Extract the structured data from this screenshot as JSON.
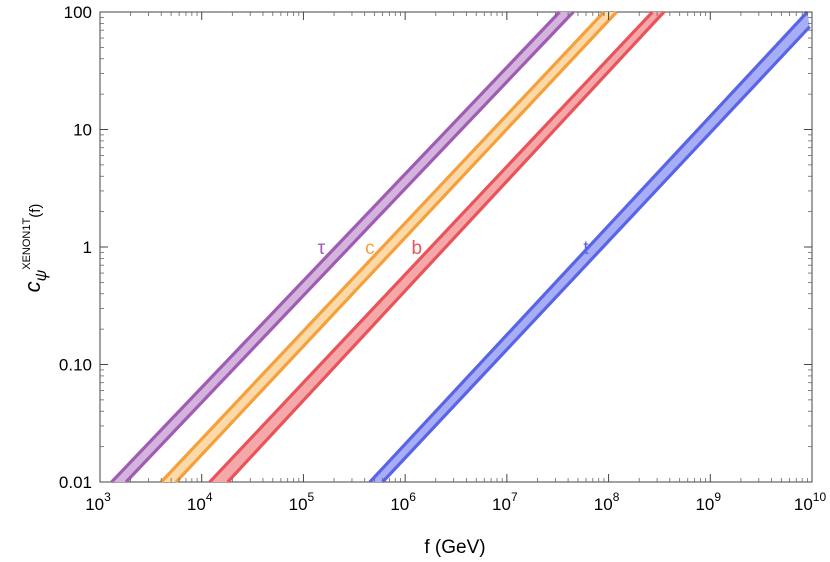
{
  "chart_data": {
    "type": "area",
    "xlabel": "f (GeV)",
    "ylabel": {
      "main": "c",
      "sub": "ψ",
      "sup": "XENON1T",
      "arg": "(f)"
    },
    "xscale": "log",
    "yscale": "log",
    "xlim": [
      1000,
      10000000000
    ],
    "ylim": [
      0.01,
      100
    ],
    "x_ticks": [
      {
        "base": "10",
        "exp": "3"
      },
      {
        "base": "10",
        "exp": "4"
      },
      {
        "base": "10",
        "exp": "5"
      },
      {
        "base": "10",
        "exp": "6"
      },
      {
        "base": "10",
        "exp": "7"
      },
      {
        "base": "10",
        "exp": "8"
      },
      {
        "base": "10",
        "exp": "9"
      },
      {
        "base": "10",
        "exp": "10"
      }
    ],
    "y_ticks": [
      "0.01",
      "0.10",
      "1",
      "10",
      "100"
    ],
    "series": [
      {
        "name": "τ",
        "color": "#a05cb4",
        "fill": "#d2b4dc",
        "lower": [
          [
            1800,
            0.01
          ],
          [
            45000000,
            100
          ]
        ],
        "upper": [
          [
            1300,
            0.01
          ],
          [
            33000000,
            100
          ]
        ],
        "label_at": [
          150000,
          1.0
        ]
      },
      {
        "name": "c",
        "color": "#f5a03c",
        "fill": "#fcd9a8",
        "lower": [
          [
            5600,
            0.01
          ],
          [
            120000000,
            100
          ]
        ],
        "upper": [
          [
            4000,
            0.01
          ],
          [
            90000000,
            100
          ]
        ],
        "label_at": [
          450000,
          1.0
        ]
      },
      {
        "name": "b",
        "color": "#e8545a",
        "fill": "#f5a8aa",
        "lower": [
          [
            18000,
            0.01
          ],
          [
            350000000,
            100
          ]
        ],
        "upper": [
          [
            12000,
            0.01
          ],
          [
            270000000,
            100
          ]
        ],
        "label_at": [
          1300000,
          1.0
        ]
      },
      {
        "name": "t",
        "color": "#5a64e6",
        "fill": "#a8aef5",
        "lower": [
          [
            600000,
            0.01
          ],
          [
            9500000000,
            75
          ]
        ],
        "upper": [
          [
            450000,
            0.01
          ],
          [
            9000000000,
            100
          ]
        ],
        "label_at": [
          60000000,
          1.0
        ]
      }
    ]
  }
}
